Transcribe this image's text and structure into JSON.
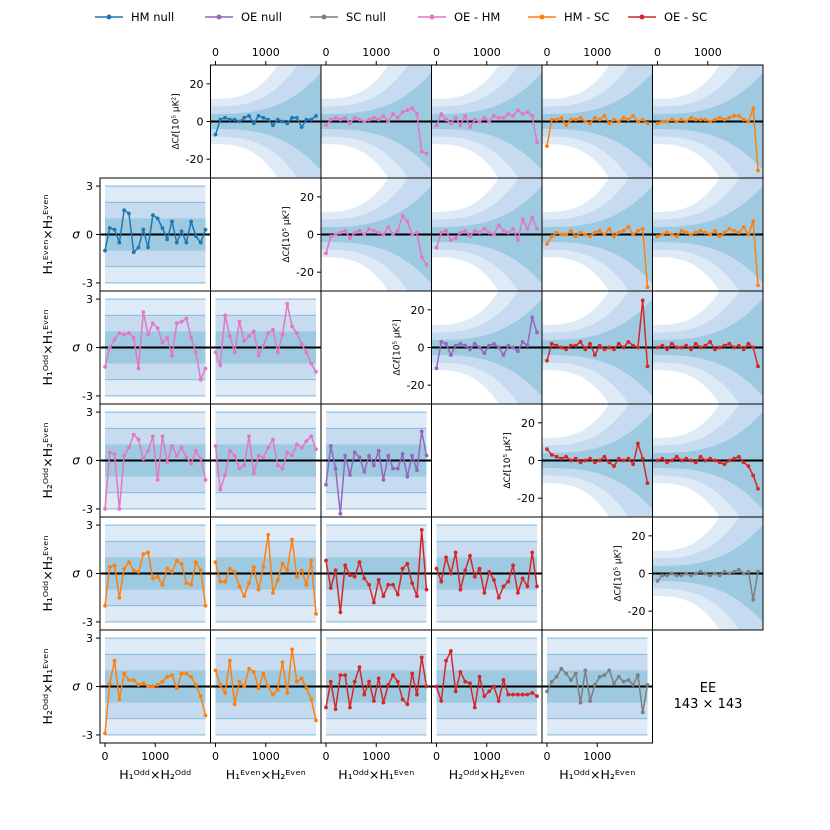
{
  "legend": [
    {
      "label": "HM null",
      "color": "#1f77b4"
    },
    {
      "label": "OE null",
      "color": "#9467bd"
    },
    {
      "label": "SC null",
      "color": "#7f7f7f"
    },
    {
      "label": "OE - HM",
      "color": "#e377c2"
    },
    {
      "label": "HM - SC",
      "color": "#ff7f0e"
    },
    {
      "label": "OE - SC",
      "color": "#d62728"
    }
  ],
  "annotation": {
    "line1": "EE",
    "line2": "143 × 143"
  },
  "row_labels": [
    "H₁ᴱᵛᵉⁿ×H₂ᴱᵛᵉⁿ",
    "H₁ᴼᵈᵈ×H₁ᴱᵛᵉⁿ",
    "H₂ᴼᵈᵈ×H₂ᴱᵛᵉⁿ",
    "H₁ᴼᵈᵈ×H₂ᴱᵛᵉⁿ",
    "H₂ᴼᵈᵈ×H₁ᴱᵛᵉⁿ"
  ],
  "col_labels": [
    "H₁ᴼᵈᵈ×H₂ᴼᵈᵈ",
    "H₁ᴱᵛᵉⁿ×H₂ᴱᵛᵉⁿ",
    "H₁ᴼᵈᵈ×H₁ᴱᵛᵉⁿ",
    "H₂ᴼᵈᵈ×H₂ᴱᵛᵉⁿ",
    "H₁ᴼᵈᵈ×H₂ᴱᵛᵉⁿ"
  ],
  "sigma_label": "σ",
  "delta_label": "ΔCℓ[10⁵ μK²]",
  "chart_data": {
    "type": "line",
    "title": "EE 143 × 143",
    "x_ticks": [
      "0",
      "1000"
    ],
    "sigma_ticks": [
      "3",
      "0",
      "-3"
    ],
    "sigma_ylim": [
      -3.5,
      3.5
    ],
    "delta_ticks": [
      "20",
      "0",
      "-20"
    ],
    "delta_ylim": [
      -30,
      30
    ],
    "xlim": [
      0,
      2000
    ],
    "sigma_panels": [
      {
        "row": 1,
        "col": 0,
        "series": "HM null",
        "values": [
          -1,
          0.4,
          0.3,
          -0.5,
          1.5,
          1.3,
          -1.1,
          -0.8,
          0.3,
          -0.8,
          1.2,
          1.0,
          0.4,
          -0.3,
          0.8,
          -0.5,
          0.2,
          -0.5,
          0.8,
          -0.1,
          -0.5,
          0.3
        ]
      },
      {
        "row": 2,
        "col": 0,
        "series": "OE - HM",
        "values": [
          -1.2,
          0,
          0.5,
          0.9,
          0.8,
          0.9,
          0.6,
          -1.3,
          2.2,
          0.8,
          1.5,
          1.2,
          0.3,
          0.6,
          -0.5,
          1.5,
          1.6,
          1.8,
          0.6,
          -0.3,
          -2.0,
          -1.3
        ]
      },
      {
        "row": 2,
        "col": 1,
        "series": "OE - HM",
        "values": [
          -0.3,
          -1.1,
          2.0,
          0.7,
          -0.3,
          1.6,
          0.4,
          0.7,
          1.0,
          -0.5,
          0.1,
          0.9,
          1.1,
          -0.3,
          0.8,
          2.7,
          1.3,
          0.9,
          0.2,
          -0.3,
          -1.0,
          -1.5
        ]
      },
      {
        "row": 3,
        "col": 0,
        "series": "OE - HM",
        "values": [
          -3.0,
          0.5,
          0.4,
          -3.0,
          0.3,
          0.8,
          1.6,
          1.3,
          0.1,
          0.6,
          1.5,
          -1.2,
          1.5,
          -0.1,
          0.9,
          0.3,
          0.8,
          0.2,
          -0.2,
          0.6,
          0.1,
          -1.2
        ]
      },
      {
        "row": 3,
        "col": 1,
        "series": "OE - HM",
        "values": [
          0.9,
          -1.8,
          -0.9,
          0.6,
          0.3,
          -0.5,
          -0.3,
          1.5,
          -0.8,
          0.3,
          0.2,
          0.8,
          1.3,
          -0.3,
          -0.5,
          0.5,
          0.3,
          1.0,
          0.8,
          1.2,
          1.5,
          0.7
        ]
      },
      {
        "row": 3,
        "col": 2,
        "series": "OE null",
        "values": [
          -1.5,
          0.9,
          -0.5,
          -3.3,
          0.3,
          -0.9,
          0.5,
          0.2,
          -0.7,
          0.3,
          -0.3,
          0.6,
          -1.2,
          0.3,
          -0.5,
          -0.5,
          0.4,
          -1.0,
          0.3,
          -0.6,
          1.8,
          0.3
        ]
      },
      {
        "row": 4,
        "col": 0,
        "series": "HM - SC",
        "values": [
          -2.0,
          0.4,
          0.5,
          -1.5,
          0.3,
          0.7,
          0.2,
          0.1,
          1.2,
          1.3,
          -0.3,
          -0.2,
          -0.7,
          0.3,
          0.1,
          0.8,
          0.6,
          -0.6,
          -0.7,
          0.7,
          0.2,
          -2.0
        ]
      },
      {
        "row": 4,
        "col": 1,
        "series": "HM - SC",
        "values": [
          0.7,
          -0.5,
          -0.5,
          0.3,
          0.1,
          -0.8,
          -1.4,
          -0.6,
          0.4,
          -1.0,
          0.4,
          2.4,
          -1.2,
          -0.4,
          0.6,
          0.2,
          2.1,
          -0.2,
          0.2,
          -0.7,
          0.8,
          -2.5
        ]
      },
      {
        "row": 4,
        "col": 2,
        "series": "OE - SC",
        "values": [
          0.8,
          -0.9,
          0.2,
          -2.4,
          0.5,
          -0.1,
          -0.2,
          0.7,
          -0.3,
          -0.7,
          -1.8,
          -0.4,
          -1.4,
          -0.7,
          -0.7,
          -1.3,
          0.3,
          0.6,
          -0.6,
          -1.4,
          2.7,
          -1.0
        ]
      },
      {
        "row": 4,
        "col": 3,
        "series": "OE - SC",
        "values": [
          0.3,
          -0.5,
          1.0,
          0.0,
          1.3,
          -1.0,
          0.2,
          1.1,
          -0.2,
          0.3,
          -1.2,
          0.1,
          -0.4,
          -1.5,
          -0.8,
          -0.5,
          0.5,
          -1.2,
          -0.3,
          -0.8,
          1.3,
          -0.8
        ]
      },
      {
        "row": 5,
        "col": 0,
        "series": "HM - SC",
        "values": [
          -2.9,
          0.2,
          1.6,
          -0.8,
          0.8,
          0.4,
          0.4,
          0.1,
          0.2,
          0.0,
          0.0,
          0.1,
          0.3,
          0.6,
          0.7,
          -0.1,
          0.8,
          0.8,
          0.6,
          0.1,
          -0.6,
          -1.8
        ]
      },
      {
        "row": 5,
        "col": 1,
        "series": "HM - SC",
        "values": [
          1.0,
          0.1,
          -0.4,
          1.6,
          -1.1,
          0.3,
          0.0,
          1.1,
          0.9,
          -0.1,
          0.8,
          0.0,
          -0.5,
          -0.2,
          1.5,
          -0.4,
          2.3,
          0.3,
          0.5,
          -0.1,
          -0.8,
          -2.1
        ]
      },
      {
        "row": 5,
        "col": 2,
        "series": "OE - SC",
        "values": [
          -1.3,
          0.3,
          -1.4,
          0.7,
          0.7,
          -1.3,
          0.3,
          1.2,
          -0.5,
          0.3,
          -0.9,
          0.5,
          -1.0,
          0.1,
          0.7,
          0.3,
          -0.8,
          -1.1,
          0.8,
          -0.5,
          1.8,
          0.0
        ]
      },
      {
        "row": 5,
        "col": 3,
        "series": "OE - SC",
        "values": [
          0.0,
          -0.9,
          1.6,
          2.2,
          -0.3,
          0.9,
          0.3,
          0.2,
          -1.3,
          0.6,
          -0.6,
          -0.3,
          0.0,
          -0.9,
          0.4,
          -0.5,
          -0.5,
          -0.5,
          -0.5,
          -0.5,
          -0.4,
          -0.6
        ]
      },
      {
        "row": 5,
        "col": 4,
        "series": "SC null",
        "values": [
          -0.3,
          0.3,
          0.6,
          1.1,
          0.8,
          0.4,
          0.8,
          -1.0,
          1.0,
          -0.9,
          0.1,
          0.6,
          0.7,
          1.0,
          0.2,
          0.6,
          0.3,
          0.4,
          0.1,
          0.7,
          -1.6,
          0.1
        ]
      }
    ],
    "delta_panels": [
      {
        "row": 0,
        "col": 1,
        "series": "HM null",
        "values": [
          -7,
          1,
          2,
          1,
          1,
          0,
          2,
          3,
          -1,
          3,
          2,
          1,
          -2,
          1,
          0,
          -1,
          2,
          2,
          -3,
          1,
          1,
          3
        ]
      },
      {
        "row": 0,
        "col": 2,
        "series": "OE - HM",
        "values": [
          -2,
          1,
          2,
          1,
          2,
          -1,
          2,
          1,
          0,
          1,
          2,
          1,
          3,
          0,
          4,
          2,
          5,
          6,
          7,
          4,
          -16,
          -17
        ]
      },
      {
        "row": 0,
        "col": 3,
        "series": "OE - HM",
        "values": [
          -2,
          4,
          1,
          -1,
          2,
          -2,
          3,
          -3,
          1,
          0,
          2,
          0,
          3,
          2,
          2,
          4,
          3,
          6,
          4,
          5,
          3,
          -11
        ]
      },
      {
        "row": 0,
        "col": 4,
        "series": "HM - SC",
        "values": [
          -13,
          1,
          1,
          2,
          -2,
          1,
          1,
          2,
          0,
          -1,
          2,
          1,
          3,
          -1,
          1,
          0,
          2,
          1,
          3,
          0,
          1,
          -1
        ]
      },
      {
        "row": 0,
        "col": 5,
        "series": "HM - SC",
        "values": [
          -1,
          0,
          0,
          1,
          0,
          1,
          0,
          2,
          1,
          1,
          1,
          0,
          1,
          2,
          1,
          2,
          3,
          3,
          1,
          0,
          7,
          -26
        ]
      },
      {
        "row": 1,
        "col": 2,
        "series": "OE - HM",
        "values": [
          -10,
          -1,
          0,
          1,
          2,
          -2,
          1,
          2,
          0,
          3,
          2,
          1,
          0,
          4,
          0,
          2,
          10,
          7,
          0,
          1,
          -12,
          -16
        ]
      },
      {
        "row": 1,
        "col": 3,
        "series": "OE - HM",
        "values": [
          -7,
          1,
          2,
          -3,
          -2,
          1,
          2,
          -1,
          2,
          1,
          3,
          1,
          0,
          5,
          2,
          1,
          3,
          -3,
          8,
          3,
          9,
          3
        ]
      },
      {
        "row": 1,
        "col": 4,
        "series": "HM - SC",
        "values": [
          -5,
          -1,
          1,
          0,
          0,
          2,
          -1,
          1,
          0,
          -1,
          1,
          2,
          0,
          3,
          -1,
          1,
          2,
          4,
          0,
          2,
          3,
          -28
        ]
      },
      {
        "row": 1,
        "col": 5,
        "series": "HM - SC",
        "values": [
          -1,
          0,
          1,
          0,
          -1,
          2,
          1,
          0,
          1,
          2,
          1,
          0,
          2,
          -1,
          1,
          3,
          2,
          1,
          4,
          0,
          7,
          -27
        ]
      },
      {
        "row": 2,
        "col": 3,
        "series": "OE null",
        "values": [
          -11,
          3,
          2,
          -4,
          1,
          2,
          1,
          -1,
          2,
          0,
          -3,
          1,
          2,
          0,
          -4,
          1,
          0,
          -2,
          3,
          1,
          16,
          8
        ]
      },
      {
        "row": 2,
        "col": 4,
        "series": "OE - SC",
        "values": [
          -7,
          2,
          1,
          0,
          -1,
          1,
          1,
          3,
          -1,
          2,
          -4,
          1,
          -1,
          0,
          -1,
          2,
          0,
          3,
          1,
          0,
          25,
          -10
        ]
      },
      {
        "row": 2,
        "col": 5,
        "series": "OE - SC",
        "values": [
          0,
          1,
          -1,
          2,
          0,
          0,
          1,
          -1,
          2,
          0,
          1,
          3,
          -1,
          0,
          1,
          2,
          0,
          1,
          -1,
          2,
          0,
          -10
        ]
      },
      {
        "row": 3,
        "col": 4,
        "series": "OE - SC",
        "values": [
          6,
          3,
          2,
          1,
          2,
          0,
          1,
          -1,
          0,
          1,
          -1,
          0,
          2,
          -1,
          -3,
          1,
          0,
          1,
          -2,
          9,
          1,
          -12
        ]
      },
      {
        "row": 3,
        "col": 5,
        "series": "OE - SC",
        "values": [
          0,
          1,
          -1,
          0,
          2,
          0,
          1,
          0,
          -1,
          2,
          0,
          1,
          0,
          -1,
          -2,
          0,
          1,
          2,
          -1,
          -3,
          -8,
          -15
        ]
      },
      {
        "row": 4,
        "col": 5,
        "series": "SC null",
        "values": [
          -4,
          -1,
          -1,
          0,
          -1,
          -1,
          0,
          -1,
          0,
          1,
          0,
          -1,
          0,
          -1,
          1,
          0,
          1,
          2,
          0,
          1,
          -14,
          1
        ]
      }
    ]
  }
}
